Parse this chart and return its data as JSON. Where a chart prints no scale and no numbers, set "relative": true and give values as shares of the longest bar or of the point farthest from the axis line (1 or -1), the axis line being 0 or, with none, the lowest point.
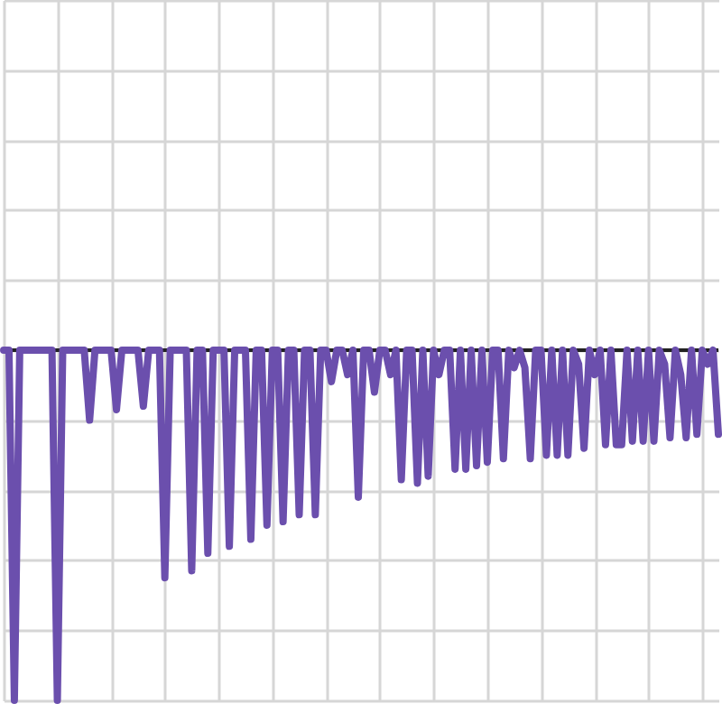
{
  "chart_data": {
    "type": "line",
    "relative": true,
    "grid": true,
    "marker": "none",
    "line_style": "solid",
    "categories": [
      null,
      null,
      null,
      null,
      null,
      null,
      null,
      null,
      null,
      null,
      null,
      null,
      null,
      null,
      null,
      null,
      null,
      null,
      null,
      null,
      null,
      null,
      null,
      null,
      null,
      null,
      null,
      null,
      null,
      null,
      null,
      null,
      null,
      null,
      null,
      null,
      null,
      null,
      null,
      null,
      null,
      null,
      null,
      null,
      null,
      null,
      null,
      null,
      null,
      null,
      null,
      null,
      null,
      null,
      null,
      null,
      null,
      null,
      null,
      null,
      null,
      null,
      null,
      null,
      null,
      null,
      null,
      null,
      null,
      null,
      null,
      null,
      null,
      null,
      null,
      null,
      null,
      null,
      null,
      null,
      null,
      null,
      null,
      null,
      null,
      null,
      null,
      null,
      null,
      null,
      null,
      null,
      null,
      null,
      null,
      null,
      null,
      null,
      null,
      null,
      null,
      null,
      null,
      null,
      null,
      null,
      null,
      null,
      null,
      null,
      null,
      null,
      null,
      null,
      null,
      null,
      null,
      null,
      null,
      null,
      null,
      null,
      null,
      null,
      null,
      null,
      null,
      null,
      null,
      null,
      null,
      null,
      null,
      null
    ],
    "series": [
      {
        "color": "#6b4fad",
        "values": [
          0,
          0,
          -1,
          0,
          0,
          0,
          0,
          0,
          0,
          0,
          -1,
          0,
          0,
          0,
          0,
          0,
          -0.2,
          0,
          0,
          0,
          0,
          -0.17,
          0,
          0,
          0,
          0,
          -0.16,
          0,
          0,
          0,
          -0.65,
          0,
          0,
          0,
          0,
          -0.63,
          0,
          0,
          -0.58,
          0,
          0,
          0,
          -0.56,
          0,
          0,
          0,
          -0.54,
          0,
          0,
          -0.5,
          0,
          0,
          -0.49,
          0,
          0,
          -0.47,
          0,
          0,
          -0.47,
          0,
          0,
          -0.09,
          0,
          0,
          -0.07,
          0,
          -0.42,
          0,
          0,
          -0.12,
          0,
          0,
          -0.07,
          0,
          -0.37,
          0,
          0,
          -0.38,
          0,
          -0.36,
          0,
          -0.07,
          0,
          0,
          -0.34,
          0,
          -0.34,
          0,
          -0.33,
          0,
          -0.32,
          0,
          0,
          -0.31,
          0,
          -0.05,
          0,
          -0.05,
          -0.31,
          0,
          0,
          -0.3,
          0,
          -0.3,
          0,
          -0.3,
          0,
          -0.04,
          -0.28,
          0,
          -0.07,
          0,
          -0.27,
          0,
          -0.27,
          -0.27,
          0,
          -0.26,
          0,
          -0.26,
          0,
          -0.26,
          0,
          -0.04,
          -0.25,
          0,
          -0.07,
          -0.25,
          0,
          -0.24,
          0,
          -0.04,
          0,
          -0.24
        ]
      }
    ]
  }
}
